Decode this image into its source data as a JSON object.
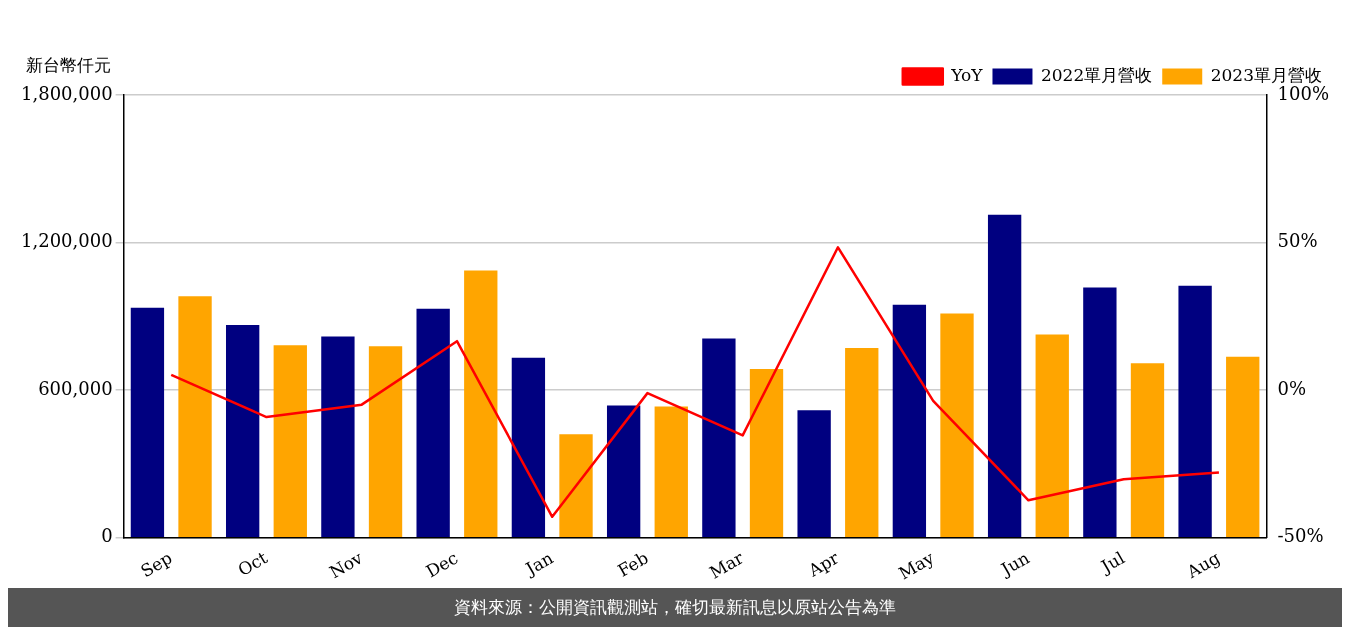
{
  "chart_data": {
    "type": "bar",
    "ylabel": "新台幣仟元",
    "categories": [
      "Sep",
      "Oct",
      "Nov",
      "Dec",
      "Jan",
      "Feb",
      "Mar",
      "Apr",
      "May",
      "Jun",
      "Jul",
      "Aug"
    ],
    "series": [
      {
        "name": "2022單月營收",
        "color": "#000080",
        "values": [
          935000,
          865000,
          818000,
          931000,
          732000,
          538000,
          810000,
          518000,
          947000,
          1313000,
          1017000,
          1025000
        ]
      },
      {
        "name": "2023單月營收",
        "color": "#ffa500",
        "values": [
          982000,
          783000,
          779000,
          1087000,
          421000,
          534000,
          686000,
          771000,
          912000,
          826000,
          709000,
          736000
        ]
      },
      {
        "name": "YoY",
        "type": "line",
        "axis": "y2",
        "color": "#ff0000",
        "marker": "none",
        "values": [
          5.2,
          -9.1,
          -4.9,
          16.6,
          -42.9,
          -1,
          -15.3,
          48.4,
          -3.6,
          -37.3,
          -30.2,
          -27.9
        ]
      }
    ],
    "ylim": [
      0,
      1800000
    ],
    "yticks": [
      {
        "value": 0,
        "label": "0"
      },
      {
        "value": 600000,
        "label": "600,000"
      },
      {
        "value": 1200000,
        "label": "1,200,000"
      },
      {
        "value": 1800000,
        "label": "1,800,000"
      }
    ],
    "y2lim": [
      -50,
      100
    ],
    "y2ticks": [
      {
        "value": -50,
        "label": "-50%"
      },
      {
        "value": 0,
        "label": "0%"
      },
      {
        "value": 50,
        "label": "50%"
      },
      {
        "value": 100,
        "label": "100%"
      }
    ],
    "grid": "y",
    "legend": "top right",
    "annotations": [
      "資料來源：公開資訊觀測站，確切最新訊息以原站公告為準"
    ]
  }
}
